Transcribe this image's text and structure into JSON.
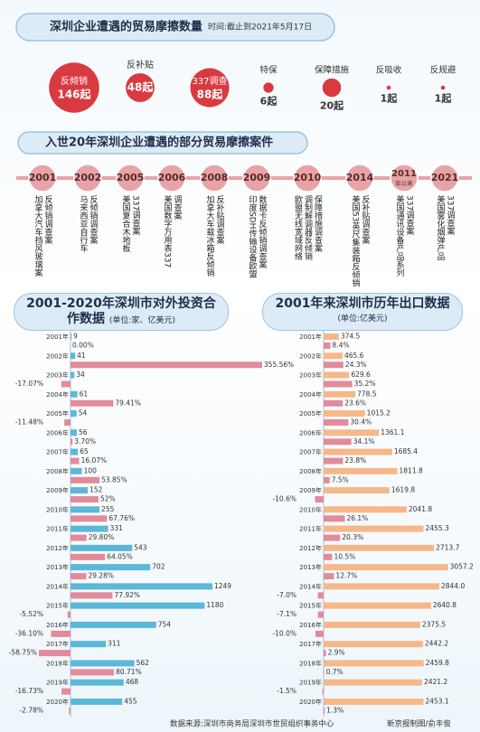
{
  "header": {
    "title": "深圳企业遭遇的贸易摩擦数量",
    "subtitle": "时间:截止到2021年5月17日"
  },
  "timeline": {
    "title": "入世20年深圳企业遭遇的部分贸易摩擦案件",
    "events": [
      {
        "year": "2001",
        "lines": [
          "加拿大汽车挡风玻璃案",
          "反倾销调查案"
        ]
      },
      {
        "year": "2002",
        "lines": [
          "马来西亚自行车",
          "反倾销调查案"
        ]
      },
      {
        "year": "2005",
        "lines": [
          "美国复合木地板",
          "337调查案"
        ]
      },
      {
        "year": "2006",
        "lines": [
          "美国数字万用表337",
          "调查案"
        ]
      },
      {
        "year": "2008",
        "lines": [
          "加拿大车载冰箱反倾销",
          "反补贴调查案"
        ]
      },
      {
        "year": "2009",
        "lines": [
          "印度SDH传输设备欧盟",
          "数据卡反倾销调查案"
        ]
      },
      {
        "year": "2010",
        "lines": [
          "欧盟无线宽域网络",
          "调制解调器反倾销",
          "保障措施调查案"
        ]
      },
      {
        "year": "2014",
        "lines": [
          "美国53英尺集装箱反倾销",
          "反补贴调查案"
        ]
      },
      {
        "year": "2011",
        "note": "年以来",
        "lines": [
          "美国通讯设备产品系列",
          "337调查案"
        ]
      },
      {
        "year": "2021",
        "lines": [
          "美国雾化烟弹产品",
          "337调查案"
        ]
      }
    ]
  },
  "chart_data": [
    {
      "type": "bubble",
      "color": "#d93a40",
      "categories": [
        "反倾销",
        "反补贴",
        "337调查",
        "特保",
        "保障措施",
        "反吸收",
        "反规避"
      ],
      "values": [
        146,
        48,
        88,
        6,
        20,
        1,
        1
      ],
      "value_labels": [
        "146起",
        "48起",
        "88起",
        "6起",
        "20起",
        "1起",
        "1起"
      ]
    },
    {
      "type": "bar",
      "title": "2001-2020年深圳市对外投资合作数据",
      "subtitle": "(单位:家、亿美元)",
      "categories": [
        "2001年",
        "2002年",
        "2003年",
        "2004年",
        "2005年",
        "2006年",
        "2007年",
        "2008年",
        "2009年",
        "2010年",
        "2011年",
        "2012年",
        "2013年",
        "2014年",
        "2015年",
        "2016年",
        "2017年",
        "2018年",
        "2019年",
        "2020年"
      ],
      "series": [
        {
          "color": "#5bb8d9",
          "values": [
            9,
            41,
            34,
            61,
            54,
            56,
            65,
            100,
            152,
            255,
            331,
            543,
            702,
            1249,
            1180,
            754,
            311,
            562,
            468,
            455
          ]
        },
        {
          "color": "#e28b9a",
          "values": [
            0,
            355.56,
            -17.07,
            79.41,
            -11.48,
            3.7,
            16.07,
            53.85,
            52,
            67.76,
            29.8,
            64.05,
            29.28,
            77.92,
            -5.52,
            -36.1,
            -58.75,
            80.71,
            -16.73,
            -2.78
          ],
          "value_labels": [
            "0.00%",
            "355.56%",
            "-17.07%",
            "79.41%",
            "-11.48%",
            "3.70%",
            "16.07%",
            "53.85%",
            "52%",
            "67.76%",
            "29.80%",
            "64.05%",
            "29.28%",
            "77.92%",
            "-5.52%",
            "-36.10%",
            "-58.75%",
            "80.71%",
            "-16.73%",
            "-2.78%"
          ]
        }
      ]
    },
    {
      "type": "bar",
      "title": "2001年来深圳市历年出口数据",
      "subtitle": "(单位:亿美元)",
      "categories": [
        "2001年",
        "2002年",
        "2003年",
        "2004年",
        "2005年",
        "2006年",
        "2007年",
        "2008年",
        "2009年",
        "2010年",
        "2011年",
        "2012年",
        "2013年",
        "2014年",
        "2015年",
        "2016年",
        "2017年",
        "2018年",
        "2019年",
        "2020年"
      ],
      "series": [
        {
          "color": "#f6b889",
          "values": [
            374.5,
            465.6,
            629.6,
            778.5,
            1015.2,
            1361.1,
            1685.4,
            1811.8,
            1619.8,
            2041.8,
            2455.3,
            2713.7,
            3057.2,
            2844.0,
            2640.8,
            2375.5,
            2442.2,
            2459.8,
            2421.2,
            2453.1
          ],
          "value_labels": [
            "374.5",
            "465.6",
            "629.6",
            "778.5",
            "1015.2",
            "1361.1",
            "1685.4",
            "1811.8",
            "1619.8",
            "2041.8",
            "2455.3",
            "2713.7",
            "3057.2",
            "2844.0",
            "2640.8",
            "2375.5",
            "2442.2",
            "2459.8",
            "2421.2",
            "2453.1"
          ]
        },
        {
          "color": "#e28b9a",
          "values": [
            8.4,
            24.3,
            35.2,
            23.6,
            30.4,
            34.1,
            23.8,
            7.5,
            -10.6,
            26.1,
            20.3,
            10.5,
            12.7,
            -7.0,
            -7.1,
            -10.0,
            2.9,
            0.7,
            -1.5,
            1.3
          ],
          "value_labels": [
            "8.4%",
            "24.3%",
            "35.2%",
            "23.6%",
            "30.4%",
            "34.1%",
            "23.8%",
            "7.5%",
            "-10.6%",
            "26.1%",
            "20.3%",
            "10.5%",
            "12.7%",
            "-7.0%",
            "-7.1%",
            "-10.0%",
            "2.9%",
            "0.7%",
            "-1.5%",
            "1.3%"
          ]
        }
      ]
    }
  ],
  "footer": {
    "source": "数据来源:深圳市商务局深圳市世贸组织事务中心",
    "credit": "新京报制图/俞丰俊"
  }
}
